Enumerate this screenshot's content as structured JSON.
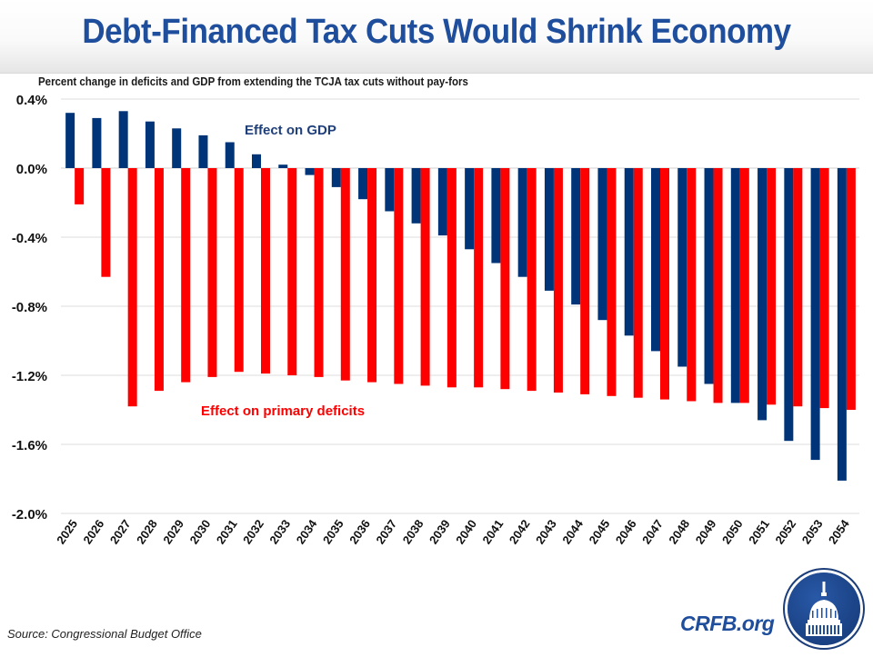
{
  "header": {
    "title": "Debt-Financed Tax Cuts Would Shrink Economy",
    "subtitle": "Percent change in deficits and GDP from extending the TCJA tax cuts without pay-fors"
  },
  "footer": {
    "source": "Source: Congressional Budget Office",
    "brand": "CRFB.org",
    "logo_icon": "capitol-dome-logo-icon"
  },
  "chart_data": {
    "type": "bar",
    "title": "Debt-Financed Tax Cuts Would Shrink Economy",
    "subtitle": "Percent change in deficits and GDP from extending the TCJA tax cuts without pay-fors",
    "xlabel": "",
    "ylabel": "",
    "ylim": [
      -2.0,
      0.4
    ],
    "yticks": [
      0.4,
      0.0,
      -0.4,
      -0.8,
      -1.2,
      -1.6,
      -2.0
    ],
    "ytick_labels": [
      "0.4%",
      "0.0%",
      "-0.4%",
      "-0.8%",
      "-1.2%",
      "-1.6%",
      "-2.0%"
    ],
    "grid": true,
    "categories": [
      "2025",
      "2026",
      "2027",
      "2028",
      "2029",
      "2030",
      "2031",
      "2032",
      "2033",
      "2034",
      "2035",
      "2036",
      "2037",
      "2038",
      "2039",
      "2040",
      "2041",
      "2042",
      "2043",
      "2044",
      "2045",
      "2046",
      "2047",
      "2048",
      "2049",
      "2050",
      "2051",
      "2052",
      "2053",
      "2054"
    ],
    "series": [
      {
        "name": "Effect on GDP",
        "color": "#003478",
        "values": [
          0.32,
          0.29,
          0.33,
          0.27,
          0.23,
          0.19,
          0.15,
          0.08,
          0.02,
          -0.04,
          -0.11,
          -0.18,
          -0.25,
          -0.32,
          -0.39,
          -0.47,
          -0.55,
          -0.63,
          -0.71,
          -0.79,
          -0.88,
          -0.97,
          -1.06,
          -1.15,
          -1.25,
          -1.36,
          -1.46,
          -1.58,
          -1.69,
          -1.81
        ]
      },
      {
        "name": "Effect on primary deficits",
        "color": "#ff0000",
        "values": [
          -0.21,
          -0.63,
          -1.38,
          -1.29,
          -1.24,
          -1.21,
          -1.18,
          -1.19,
          -1.2,
          -1.21,
          -1.23,
          -1.24,
          -1.25,
          -1.26,
          -1.27,
          -1.27,
          -1.28,
          -1.29,
          -1.3,
          -1.31,
          -1.32,
          -1.33,
          -1.34,
          -1.35,
          -1.36,
          -1.36,
          -1.37,
          -1.38,
          -1.39,
          -1.4
        ]
      }
    ],
    "annotations": [
      {
        "text": "Effect on GDP",
        "series": "Effect on GDP",
        "color": "#1f3f7a"
      },
      {
        "text": "Effect on primary deficits",
        "series": "Effect on primary deficits",
        "color": "#ff0000"
      }
    ],
    "legend": "none (inline labels)"
  }
}
